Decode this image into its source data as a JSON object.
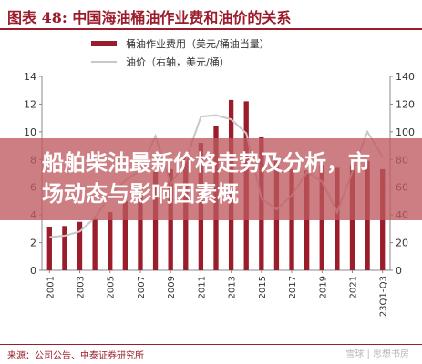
{
  "header": {
    "title": "图表 48: 中国海油桶油作业费和油价的关系"
  },
  "overlay": {
    "text": "船舶柴油最新价格走势及分析，市场动态与影响因素概"
  },
  "footer": {
    "source": "来源：公司公告、中泰证券研究所",
    "watermark": "雪球 | 思想书房"
  },
  "colors": {
    "bar": "#9b1c2a",
    "line": "#c8c8c8",
    "title": "#9b1c2a",
    "overlay": "#be5a5f"
  },
  "chart_data": {
    "type": "bar",
    "categories": [
      "2001",
      "2002",
      "2003",
      "2004",
      "2005",
      "2006",
      "2007",
      "2008",
      "2009",
      "2010",
      "2011",
      "2012",
      "2013",
      "2014",
      "2015",
      "2016",
      "2017",
      "2018",
      "2019",
      "2020",
      "2021",
      "2022",
      "23Q1-Q3"
    ],
    "x_tick_labels": [
      "2001",
      "2003",
      "2005",
      "2007",
      "2009",
      "2011",
      "2013",
      "2015",
      "2017",
      "2019",
      "2021",
      "23Q1-Q3"
    ],
    "series": [
      {
        "name": "桶油作业费用（美元/桶油当量）",
        "type": "bar",
        "axis": "left",
        "values": [
          3.1,
          3.2,
          3.5,
          3.7,
          4.2,
          5.0,
          5.9,
          7.1,
          7.3,
          8.2,
          9.2,
          10.4,
          12.3,
          12.2,
          9.6,
          7.9,
          7.3,
          7.2,
          7.6,
          7.4,
          7.6,
          7.9,
          7.3
        ]
      },
      {
        "name": "油价（右轴，美元/桶）",
        "type": "line",
        "axis": "right",
        "values": [
          24,
          25,
          28,
          38,
          54,
          65,
          72,
          97,
          62,
          79,
          111,
          112,
          109,
          99,
          52,
          44,
          54,
          71,
          64,
          42,
          71,
          100,
          82
        ]
      }
    ],
    "y_left": {
      "min": 0,
      "max": 14,
      "ticks": [
        0,
        2,
        4,
        6,
        8,
        10,
        12,
        14
      ]
    },
    "y_right": {
      "min": 0,
      "max": 140,
      "ticks": [
        0,
        20,
        40,
        60,
        80,
        100,
        120,
        140
      ]
    },
    "legend_position": "top",
    "grid": false
  }
}
